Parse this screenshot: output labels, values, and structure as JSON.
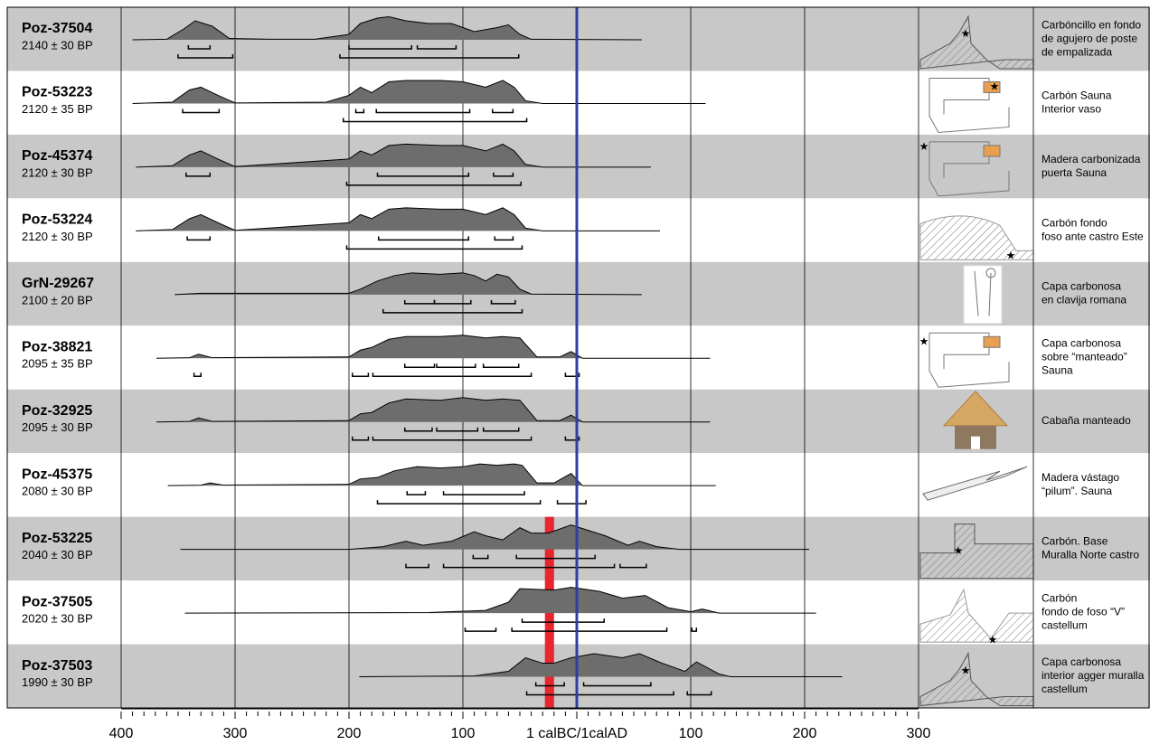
{
  "chart_data": {
    "type": "radiocarbon",
    "xlim": [
      -400,
      300
    ],
    "xticks": [
      {
        "value": -400,
        "label": "400"
      },
      {
        "value": -300,
        "label": "300"
      },
      {
        "value": -200,
        "label": "200"
      },
      {
        "value": -100,
        "label": "100"
      },
      {
        "value": 0,
        "label": "1 calBC/1calAD"
      },
      100,
      200,
      300
    ],
    "minor_tick_step": 10,
    "grid": true,
    "reference_line": {
      "x": 0,
      "color": "#2e3f9e"
    },
    "highlight": {
      "x": [
        -28,
        -20
      ],
      "rows": [
        8,
        10
      ],
      "color": "#e8262d"
    },
    "row_colors": [
      "#c8c8c8",
      "#ffffff"
    ],
    "density_color": "#6d6d6d",
    "rows": [
      {
        "label": "Poz-37504",
        "date": "2140 ± 30 BP",
        "description": [
          "Carbóncillo en fondo",
          "de agujero de poste",
          "de empalizada"
        ],
        "density": {
          "x": [
            -390,
            -360,
            -345,
            -335,
            -320,
            -305,
            -270,
            -230,
            -200,
            -190,
            -175,
            -165,
            -150,
            -130,
            -110,
            -90,
            -70,
            -60,
            -50,
            -40,
            57
          ],
          "values": [
            0,
            0.02,
            0.4,
            0.7,
            0.5,
            0.05,
            0.02,
            0.02,
            0.2,
            0.6,
            0.8,
            0.85,
            0.7,
            0.6,
            0.6,
            0.3,
            0.45,
            0.55,
            0.2,
            0.02,
            0
          ]
        },
        "sigma1": [
          [
            -341,
            -322
          ],
          [
            -200,
            -145
          ],
          [
            -140,
            -106
          ]
        ],
        "sigma2": [
          [
            -350,
            -302
          ],
          [
            -208,
            -51
          ]
        ]
      },
      {
        "label": "Poz-53223",
        "date": "2120 ± 35 BP",
        "description": [
          "Carbón Sauna",
          "Interior vaso"
        ],
        "density": {
          "x": [
            -390,
            -355,
            -340,
            -330,
            -315,
            -300,
            -220,
            -200,
            -190,
            -180,
            -165,
            -150,
            -120,
            -100,
            -80,
            -65,
            -55,
            -45,
            -30,
            113
          ],
          "values": [
            0,
            0.05,
            0.5,
            0.6,
            0.3,
            0.02,
            0.05,
            0.3,
            0.6,
            0.4,
            0.8,
            0.85,
            0.85,
            0.8,
            0.6,
            0.85,
            0.6,
            0.1,
            0,
            0
          ]
        },
        "sigma1": [
          [
            -346,
            -314
          ],
          [
            -194,
            -187
          ],
          [
            -176,
            -94
          ],
          [
            -74,
            -56
          ]
        ],
        "sigma2": [
          [
            -205,
            -44
          ]
        ]
      },
      {
        "label": "Poz-45374",
        "date": "2120 ± 30 BP",
        "description": [
          "Madera carbonizada",
          "puerta Sauna"
        ],
        "density": {
          "x": [
            -387,
            -355,
            -340,
            -330,
            -315,
            -300,
            -200,
            -190,
            -180,
            -165,
            -150,
            -120,
            -100,
            -80,
            -65,
            -55,
            -45,
            -30,
            65
          ],
          "values": [
            0,
            0.05,
            0.45,
            0.6,
            0.3,
            0.02,
            0.3,
            0.6,
            0.45,
            0.8,
            0.85,
            0.8,
            0.8,
            0.6,
            0.85,
            0.6,
            0.1,
            0,
            0
          ]
        },
        "sigma1": [
          [
            -343,
            -322
          ],
          [
            -175,
            -95
          ],
          [
            -73,
            -56
          ]
        ],
        "sigma2": [
          [
            -202,
            -49
          ]
        ]
      },
      {
        "label": "Poz-53224",
        "date": "2120 ± 30 BP",
        "description": [
          "Carbón fondo",
          "foso ante castro Este"
        ],
        "density": {
          "x": [
            -387,
            -355,
            -340,
            -330,
            -315,
            -300,
            -200,
            -190,
            -180,
            -165,
            -150,
            -120,
            -100,
            -80,
            -65,
            -55,
            -45,
            -30,
            73
          ],
          "values": [
            0,
            0.05,
            0.45,
            0.6,
            0.3,
            0.02,
            0.3,
            0.6,
            0.45,
            0.8,
            0.85,
            0.8,
            0.8,
            0.6,
            0.85,
            0.6,
            0.1,
            0,
            0
          ]
        },
        "sigma1": [
          [
            -342,
            -322
          ],
          [
            -174,
            -95
          ],
          [
            -72,
            -56
          ]
        ],
        "sigma2": [
          [
            -202,
            -48
          ]
        ]
      },
      {
        "label": "GrN-29267",
        "date": "2100 ± 20 BP",
        "description": [
          "Capa carbonosa",
          "en clavija romana"
        ],
        "density": {
          "x": [
            -353,
            -330,
            -200,
            -190,
            -175,
            -160,
            -145,
            -120,
            -100,
            -90,
            -80,
            -70,
            -60,
            -50,
            -40,
            57
          ],
          "values": [
            0,
            0.05,
            0.05,
            0.2,
            0.5,
            0.7,
            0.8,
            0.75,
            0.8,
            0.7,
            0.5,
            0.75,
            0.65,
            0.2,
            0.02,
            0
          ]
        },
        "sigma1": [
          [
            -151,
            -125
          ],
          [
            -125,
            -93
          ],
          [
            -75,
            -54
          ]
        ],
        "sigma2": [
          [
            -170,
            -48
          ]
        ]
      },
      {
        "label": "Poz-38821",
        "date": "2095 ± 35 BP",
        "description": [
          "Capa carbonosa",
          "sobre “manteado”",
          "Sauna"
        ],
        "density": {
          "x": [
            -369,
            -340,
            -332,
            -320,
            -200,
            -190,
            -180,
            -165,
            -150,
            -120,
            -100,
            -80,
            -65,
            -50,
            -35,
            -15,
            -5,
            5,
            117
          ],
          "values": [
            0,
            0.02,
            0.15,
            0.02,
            0.05,
            0.3,
            0.4,
            0.7,
            0.8,
            0.8,
            0.85,
            0.75,
            0.8,
            0.75,
            0.05,
            0.05,
            0.25,
            0,
            0
          ]
        },
        "sigma1": [
          [
            -151,
            -125
          ],
          [
            -123,
            -89
          ],
          [
            -82,
            -51
          ]
        ],
        "sigma2": [
          [
            -336,
            -330
          ],
          [
            -197,
            -183
          ],
          [
            -179,
            -40
          ],
          [
            -10,
            2
          ]
        ]
      },
      {
        "label": "Poz-32925",
        "date": "2095 ± 30 BP",
        "description": [
          "Cabaña manteado"
        ],
        "density": {
          "x": [
            -369,
            -340,
            -332,
            -320,
            -200,
            -190,
            -180,
            -165,
            -150,
            -120,
            -100,
            -80,
            -65,
            -50,
            -35,
            -15,
            -5,
            5,
            117
          ],
          "values": [
            0,
            0.02,
            0.15,
            0.02,
            0.05,
            0.3,
            0.35,
            0.7,
            0.85,
            0.8,
            0.9,
            0.8,
            0.85,
            0.8,
            0.05,
            0.05,
            0.25,
            0,
            0
          ]
        },
        "sigma1": [
          [
            -151,
            -127
          ],
          [
            -123,
            -87
          ],
          [
            -82,
            -51
          ]
        ],
        "sigma2": [
          [
            -197,
            -183
          ],
          [
            -179,
            -40
          ],
          [
            -10,
            2
          ]
        ]
      },
      {
        "label": "Poz-45375",
        "date": "2080 ± 30 BP",
        "description": [
          "Madera vástago",
          "“pilum”. Sauna"
        ],
        "density": {
          "x": [
            -359,
            -330,
            -322,
            -310,
            -200,
            -190,
            -175,
            -160,
            -140,
            -120,
            -100,
            -85,
            -70,
            -55,
            -48,
            -35,
            -20,
            -5,
            5,
            122
          ],
          "values": [
            0,
            0.02,
            0.1,
            0.02,
            0.05,
            0.25,
            0.3,
            0.55,
            0.7,
            0.65,
            0.7,
            0.8,
            0.75,
            0.8,
            0.75,
            0.1,
            0.1,
            0.45,
            0,
            0
          ]
        },
        "sigma1": [
          [
            -149,
            -133
          ],
          [
            -117,
            -46
          ]
        ],
        "sigma2": [
          [
            -175,
            -32
          ],
          [
            -17,
            8
          ]
        ]
      },
      {
        "label": "Poz-53225",
        "date": "2040 ± 30 BP",
        "description": [
          "Carbón. Base",
          "Muralla Norte castro"
        ],
        "density": {
          "x": [
            -348,
            -200,
            -170,
            -150,
            -135,
            -110,
            -90,
            -80,
            -65,
            -50,
            -40,
            -25,
            -5,
            10,
            25,
            45,
            55,
            70,
            90,
            204
          ],
          "values": [
            0,
            0,
            0.1,
            0.3,
            0.15,
            0.3,
            0.65,
            0.5,
            0.35,
            0.8,
            0.6,
            0.6,
            0.9,
            0.7,
            0.5,
            0.15,
            0.3,
            0.1,
            0,
            0
          ]
        },
        "sigma1": [
          [
            -91,
            -78
          ],
          [
            -53,
            16
          ]
        ],
        "sigma2": [
          [
            -150,
            -130
          ],
          [
            -117,
            33
          ],
          [
            38,
            61
          ]
        ]
      },
      {
        "label": "Poz-37505",
        "date": "2020 ± 30 BP",
        "description": [
          "Carbón",
          "fondo de foso “V”",
          "castellum"
        ],
        "density": {
          "x": [
            -344,
            -130,
            -80,
            -60,
            -50,
            -20,
            -5,
            20,
            40,
            60,
            80,
            100,
            110,
            125,
            210
          ],
          "values": [
            0,
            0.02,
            0.1,
            0.4,
            0.9,
            0.85,
            0.95,
            0.8,
            0.55,
            0.65,
            0.2,
            0.05,
            0.15,
            0,
            0
          ]
        },
        "sigma1": [
          [
            -48,
            24
          ]
        ],
        "sigma2": [
          [
            -98,
            -71
          ],
          [
            -57,
            79
          ],
          [
            101,
            105
          ]
        ]
      },
      {
        "label": "Poz-37503",
        "date": "1990 ± 30 BP",
        "description": [
          "Capa carbonosa",
          "interior agger muralla",
          "castellum"
        ],
        "density": {
          "x": [
            -191,
            -90,
            -60,
            -45,
            -30,
            -20,
            -5,
            15,
            40,
            55,
            75,
            95,
            105,
            125,
            135,
            233
          ],
          "values": [
            0,
            0.03,
            0.2,
            0.7,
            0.5,
            0.5,
            0.7,
            0.85,
            0.7,
            0.85,
            0.5,
            0.2,
            0.55,
            0.1,
            0,
            0
          ]
        },
        "sigma1": [
          [
            -36,
            -11
          ],
          [
            6,
            65
          ]
        ],
        "sigma2": [
          [
            -44,
            85
          ],
          [
            97,
            118
          ]
        ]
      }
    ]
  }
}
